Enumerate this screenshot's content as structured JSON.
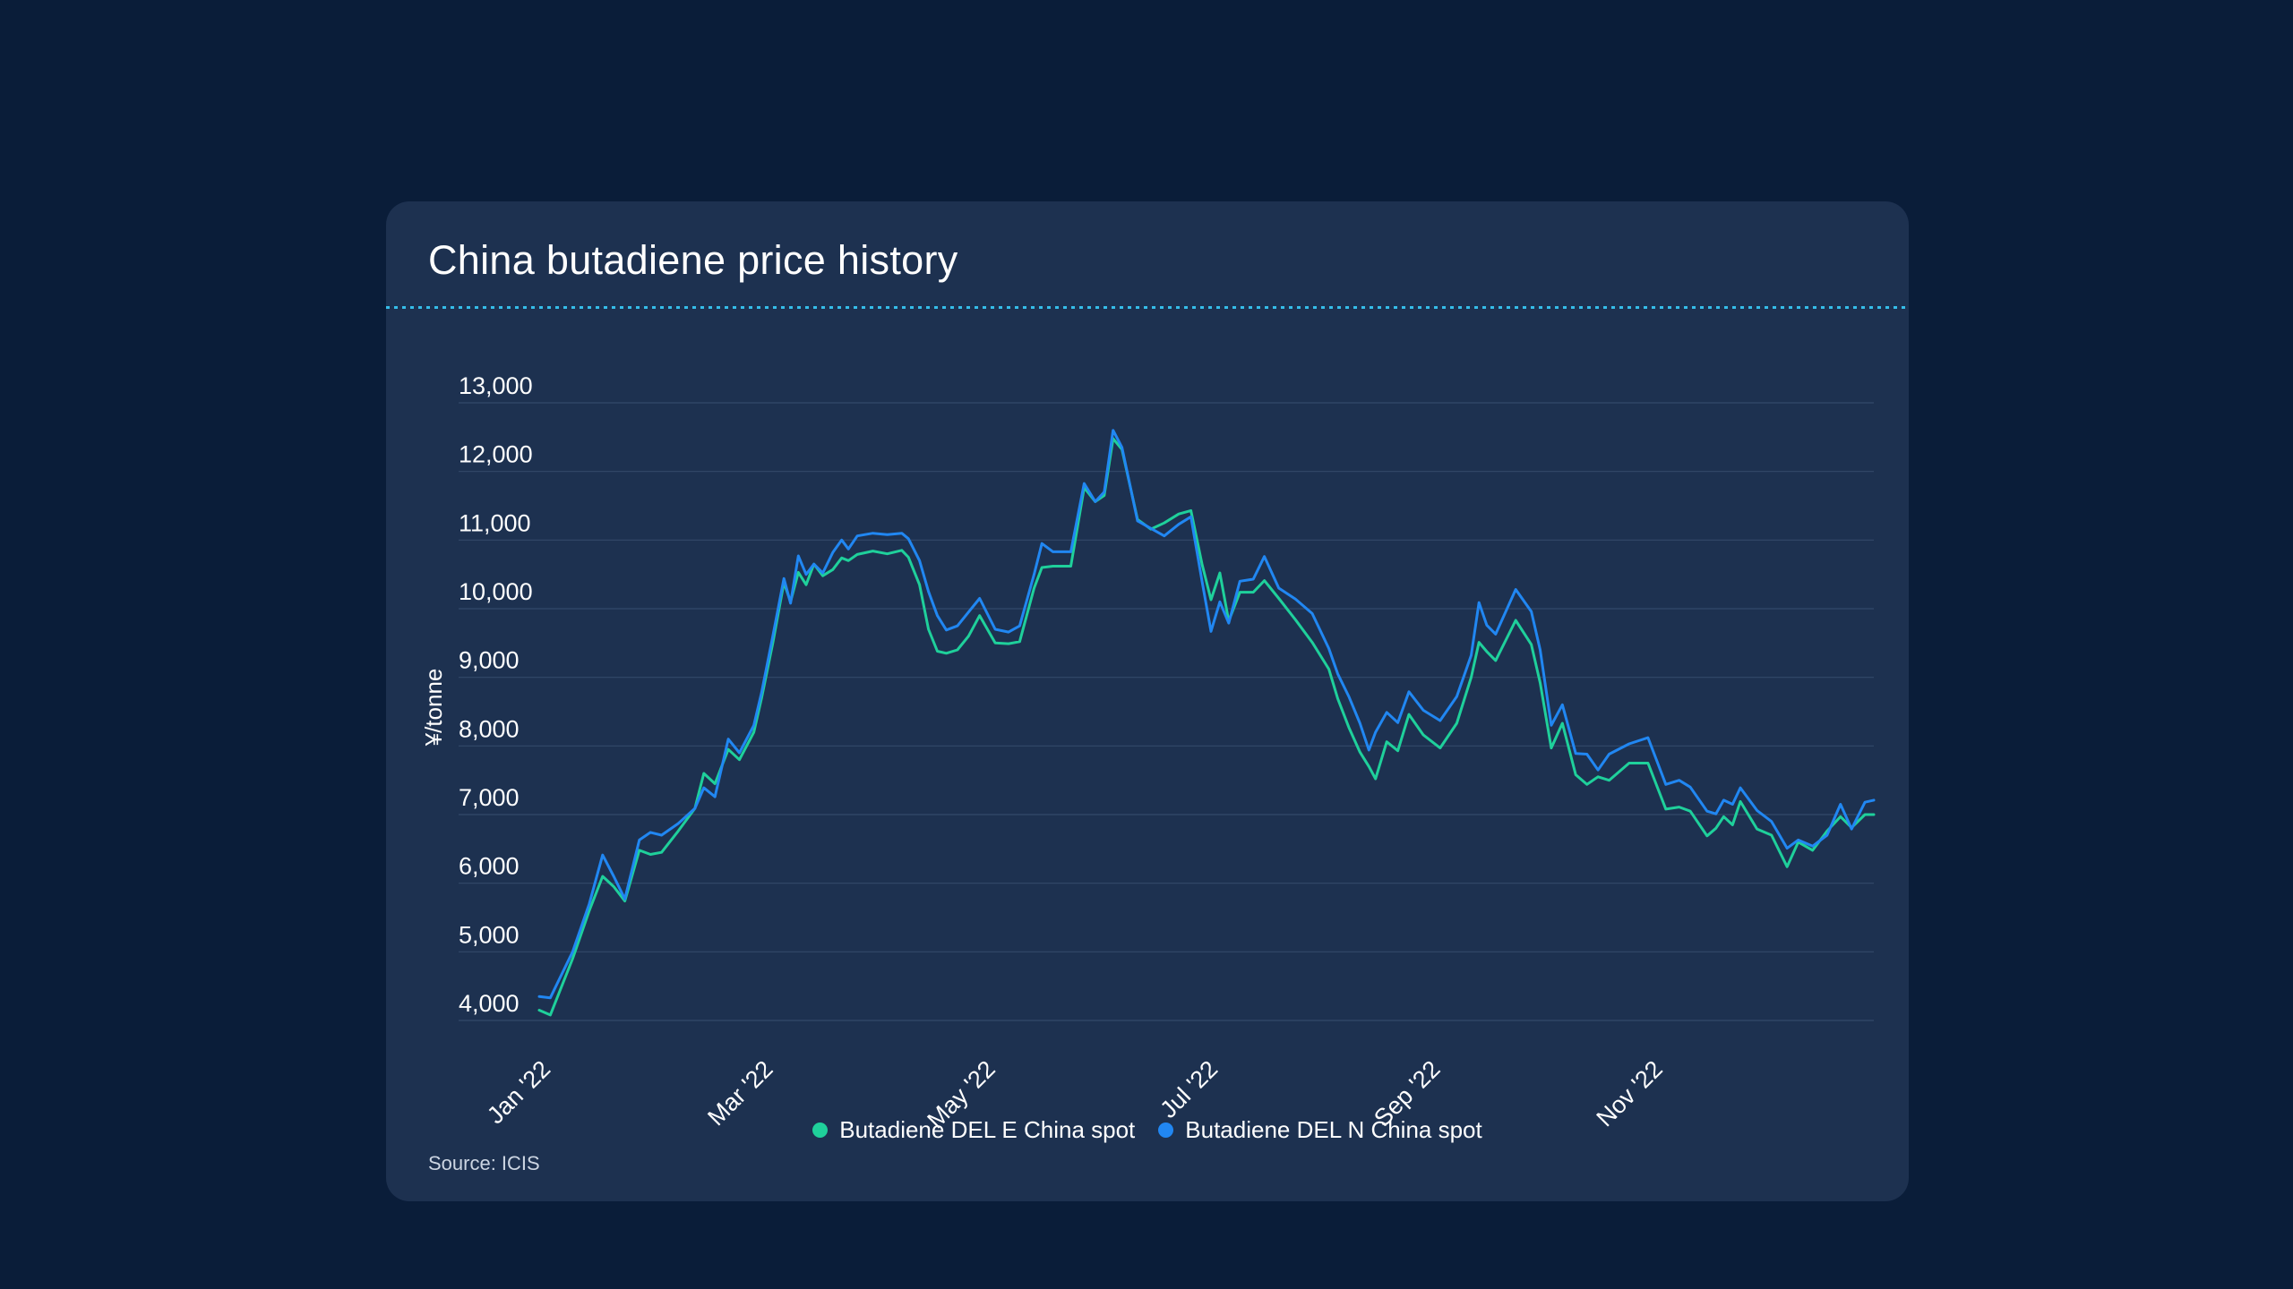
{
  "page": {
    "background": "#0a1d39"
  },
  "card": {
    "background": "#1d3150",
    "divider_color": "#35bde8",
    "title": "China butadiene price history",
    "source": "Source: ICIS"
  },
  "chart_data": {
    "type": "line",
    "title": "China butadiene price history",
    "ylabel": "¥/tonne",
    "ylim": [
      4000,
      13000
    ],
    "y_tick_step": 1000,
    "x_range_months": 12,
    "grid": "horizontal",
    "legend_position": "bottom",
    "x_ticks": [
      {
        "month": 0,
        "label": "Jan '22"
      },
      {
        "month": 2,
        "label": "Mar '22"
      },
      {
        "month": 4,
        "label": "May '22"
      },
      {
        "month": 6,
        "label": "Jul '22"
      },
      {
        "month": 8,
        "label": "Sep '22"
      },
      {
        "month": 10,
        "label": "Nov '22"
      }
    ],
    "x_months": [
      0.0,
      0.1,
      0.3,
      0.45,
      0.57,
      0.67,
      0.77,
      0.9,
      1.0,
      1.1,
      1.25,
      1.4,
      1.48,
      1.58,
      1.7,
      1.8,
      1.93,
      2.0,
      2.1,
      2.2,
      2.26,
      2.33,
      2.4,
      2.47,
      2.55,
      2.64,
      2.72,
      2.78,
      2.86,
      3.0,
      3.13,
      3.26,
      3.32,
      3.42,
      3.5,
      3.58,
      3.66,
      3.76,
      3.86,
      3.96,
      4.1,
      4.22,
      4.32,
      4.45,
      4.52,
      4.62,
      4.78,
      4.9,
      5.0,
      5.08,
      5.16,
      5.24,
      5.38,
      5.5,
      5.62,
      5.75,
      5.86,
      5.96,
      6.04,
      6.12,
      6.2,
      6.3,
      6.42,
      6.52,
      6.65,
      6.8,
      6.95,
      7.1,
      7.18,
      7.28,
      7.38,
      7.46,
      7.52,
      7.62,
      7.72,
      7.82,
      7.95,
      8.1,
      8.25,
      8.38,
      8.45,
      8.52,
      8.6,
      8.78,
      8.92,
      9.0,
      9.1,
      9.2,
      9.32,
      9.42,
      9.52,
      9.62,
      9.8,
      9.97,
      10.13,
      10.25,
      10.35,
      10.5,
      10.58,
      10.65,
      10.73,
      10.8,
      10.95,
      11.08,
      11.22,
      11.32,
      11.45,
      11.58,
      11.7,
      11.8,
      11.92,
      12.0
    ],
    "series": [
      {
        "name": "Butadiene DEL E China spot",
        "color": "#1fd09b",
        "values": [
          4150,
          4080,
          4900,
          5600,
          6100,
          5950,
          5740,
          6480,
          6420,
          6450,
          6760,
          7090,
          7600,
          7450,
          7950,
          7800,
          8200,
          8700,
          9500,
          10380,
          10100,
          10530,
          10350,
          10650,
          10480,
          10570,
          10740,
          10700,
          10790,
          10840,
          10800,
          10850,
          10750,
          10350,
          9700,
          9380,
          9350,
          9400,
          9600,
          9900,
          9500,
          9490,
          9520,
          10300,
          10600,
          10620,
          10620,
          11765,
          11560,
          11650,
          12480,
          12320,
          11300,
          11160,
          11250,
          11380,
          11430,
          10650,
          10130,
          10520,
          9820,
          10240,
          10240,
          10410,
          10150,
          9840,
          9510,
          9120,
          8690,
          8270,
          7910,
          7700,
          7520,
          8060,
          7930,
          8460,
          8160,
          7970,
          8330,
          9000,
          9510,
          9375,
          9245,
          9830,
          9480,
          8920,
          7970,
          8330,
          7580,
          7440,
          7550,
          7500,
          7750,
          7750,
          7080,
          7110,
          7050,
          6690,
          6800,
          6970,
          6850,
          7190,
          6790,
          6700,
          6240,
          6600,
          6480,
          6760,
          6970,
          6810,
          7000,
          7000
        ]
      },
      {
        "name": "Butadiene DEL N China spot",
        "color": "#2187f2",
        "values": [
          4350,
          4330,
          5000,
          5700,
          6410,
          6100,
          5770,
          6630,
          6740,
          6700,
          6870,
          7090,
          7390,
          7260,
          8100,
          7900,
          8300,
          8780,
          9600,
          10440,
          10080,
          10770,
          10500,
          10650,
          10520,
          10820,
          11000,
          10870,
          11060,
          11100,
          11080,
          11100,
          11020,
          10700,
          10250,
          9900,
          9690,
          9750,
          9950,
          10150,
          9700,
          9660,
          9750,
          10500,
          10950,
          10830,
          10830,
          11825,
          11560,
          11700,
          12600,
          12350,
          11280,
          11170,
          11060,
          11230,
          11340,
          10400,
          9670,
          10100,
          9790,
          10400,
          10430,
          10760,
          10300,
          10140,
          9930,
          9420,
          9050,
          8720,
          8330,
          7940,
          8200,
          8490,
          8340,
          8790,
          8520,
          8370,
          8720,
          9320,
          10090,
          9760,
          9630,
          10280,
          9960,
          9400,
          8300,
          8600,
          7890,
          7880,
          7650,
          7880,
          8030,
          8120,
          7440,
          7500,
          7400,
          7050,
          7010,
          7210,
          7150,
          7390,
          7060,
          6900,
          6510,
          6630,
          6540,
          6700,
          7150,
          6790,
          7180,
          7210
        ]
      }
    ]
  }
}
